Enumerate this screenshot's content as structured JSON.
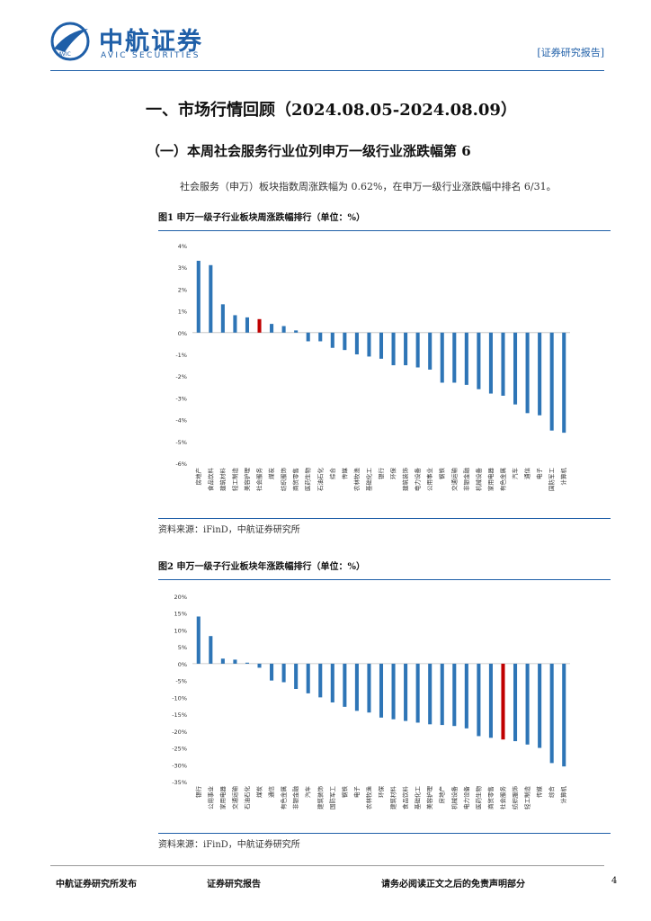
{
  "header": {
    "brand_cn": "中航证券",
    "brand_en": "AVIC SECURITIES",
    "logo_mark_text": "AVIC",
    "report_tag": "[证券研究报告]"
  },
  "section_title": "一、市场行情回顾（2024.08.05-2024.08.09）",
  "subsection_title": "（一）本周社会服务行业位列申万一级行业涨跌幅第 6",
  "paragraph": "社会服务（申万）板块指数周涨跌幅为 0.62%，在申万一级行业涨跌幅中排名 6/31。",
  "figure1": {
    "title": "图1  申万一级子行业板块周涨跌幅排行（单位：%）",
    "source": "资料来源：iFinD，中航证券研究所"
  },
  "figure2": {
    "title": "图2  申万一级子行业板块年涨跌幅排行（单位：%）",
    "source": "资料来源：iFinD，中航证券研究所"
  },
  "footer": {
    "left": "中航证券研究所发布",
    "middle": "证券研究报告",
    "right": "请务必阅读正文之后的免责声明部分",
    "page": "4"
  },
  "colors": {
    "bar": "#2e75b6",
    "highlight": "#c00000",
    "brand": "#1f5fa8"
  },
  "chart_data": [
    {
      "type": "bar",
      "title": "图1  申万一级子行业板块周涨跌幅排行（单位：%）",
      "ylim": [
        -6,
        4
      ],
      "yticks": [
        4,
        3,
        2,
        1,
        0,
        -1,
        -2,
        -3,
        -4,
        -5,
        -6
      ],
      "tick_suffix": "%",
      "highlight": "社会服务",
      "categories": [
        "房地产",
        "食品饮料",
        "建筑材料",
        "轻工制造",
        "美容护理",
        "社会服务",
        "煤炭",
        "纺织服饰",
        "商贸零售",
        "医药生物",
        "石油石化",
        "综合",
        "传媒",
        "农林牧渔",
        "基础化工",
        "银行",
        "环保",
        "建筑装饰",
        "电力设备",
        "公用事业",
        "钢铁",
        "交通运输",
        "非银金融",
        "机械设备",
        "家用电器",
        "有色金属",
        "汽车",
        "通信",
        "电子",
        "国防军工",
        "计算机"
      ],
      "values": [
        3.3,
        3.1,
        1.3,
        0.8,
        0.7,
        0.62,
        0.4,
        0.3,
        0.1,
        -0.4,
        -0.4,
        -0.7,
        -0.8,
        -1.0,
        -1.1,
        -1.2,
        -1.5,
        -1.5,
        -1.6,
        -1.7,
        -2.3,
        -2.3,
        -2.4,
        -2.6,
        -2.8,
        -2.9,
        -3.3,
        -3.7,
        -3.8,
        -4.5,
        -4.6
      ]
    },
    {
      "type": "bar",
      "title": "图2  申万一级子行业板块年涨跌幅排行（单位：%）",
      "ylim": [
        -35,
        20
      ],
      "yticks": [
        20,
        15,
        10,
        5,
        0,
        -5,
        -10,
        -15,
        -20,
        -25,
        -30,
        -35
      ],
      "tick_suffix": "%",
      "highlight": "社会服务",
      "categories": [
        "银行",
        "公用事业",
        "家用电器",
        "交通运输",
        "石油石化",
        "煤炭",
        "通信",
        "有色金属",
        "非银金融",
        "汽车",
        "建筑装饰",
        "国防军工",
        "钢铁",
        "电子",
        "农林牧渔",
        "环保",
        "建筑材料",
        "食品饮料",
        "基础化工",
        "美容护理",
        "房地产",
        "机械设备",
        "电力设备",
        "医药生物",
        "商贸零售",
        "社会服务",
        "纺织服饰",
        "轻工制造",
        "传媒",
        "综合",
        "计算机"
      ],
      "values": [
        14,
        8.2,
        1.5,
        1.2,
        0.3,
        -1.2,
        -5.0,
        -5.5,
        -7.5,
        -8.8,
        -10,
        -11.5,
        -12.8,
        -14,
        -14.5,
        -16,
        -16.5,
        -17,
        -17.5,
        -18,
        -18.2,
        -18.5,
        -19.2,
        -21.5,
        -22,
        -22.5,
        -23,
        -24,
        -25,
        -29.5,
        -30.5
      ]
    }
  ]
}
